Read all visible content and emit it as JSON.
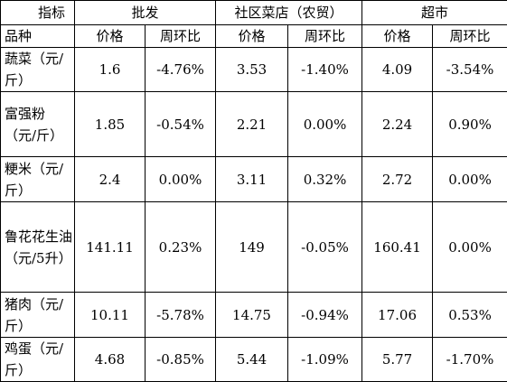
{
  "table": {
    "header": {
      "corner_top": "指标",
      "corner_bottom": "品种",
      "groups": [
        "批发",
        "社区菜店（农贸）",
        "超市"
      ],
      "subheaders": [
        "价格",
        "周环比",
        "价格",
        "周环比",
        "价格",
        "周环比"
      ]
    },
    "rows": [
      [
        "蔬菜（元/斤）",
        "1.6",
        "-4.76%",
        "3.53",
        "-1.40%",
        "4.09",
        "-3.54%"
      ],
      [
        "富强粉（元/斤）",
        "1.85",
        "-0.54%",
        "2.21",
        "0.00%",
        "2.24",
        "0.90%"
      ],
      [
        "粳米（元/斤）",
        "2.4",
        "0.00%",
        "3.11",
        "0.32%",
        "2.72",
        "0.00%"
      ],
      [
        "鲁花花生油（元/5升）",
        "141.11",
        "0.23%",
        "149",
        "-0.05%",
        "160.41",
        "0.00%"
      ],
      [
        "猪肉（元/斤）",
        "10.11",
        "-5.78%",
        "14.75",
        "-0.94%",
        "17.06",
        "0.53%"
      ],
      [
        "鸡蛋（元/斤）",
        "4.68",
        "-0.85%",
        "5.44",
        "-1.09%",
        "5.77",
        "-1.70%"
      ]
    ]
  }
}
